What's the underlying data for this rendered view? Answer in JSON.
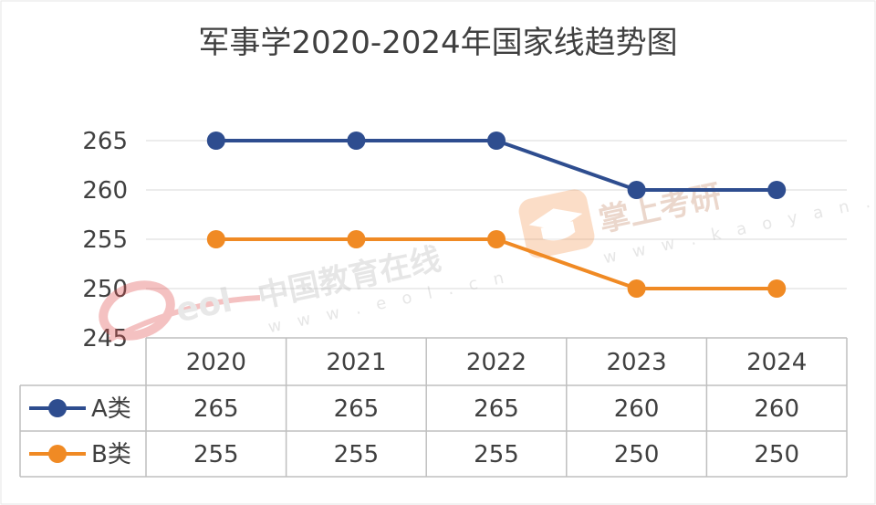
{
  "chart_data": {
    "type": "line",
    "title": "军事学2020-2024年国家线趋势图",
    "categories": [
      "2020",
      "2021",
      "2022",
      "2023",
      "2024"
    ],
    "series": [
      {
        "name": "A类",
        "values": [
          265,
          265,
          265,
          260,
          260
        ],
        "color": "#2E4D8F"
      },
      {
        "name": "B类",
        "values": [
          255,
          255,
          255,
          250,
          250
        ],
        "color": "#F08A24"
      }
    ],
    "yticks": [
      245,
      250,
      255,
      260,
      265
    ],
    "ylim": [
      245,
      265
    ],
    "grid": true,
    "data_table": true
  },
  "watermarks": {
    "eol": {
      "logo": "eol",
      "cn": "中国教育在线",
      "url": "w w w . e o l . c n",
      "icon": "eol-swoosh-icon"
    },
    "kaoyan": {
      "cn": "掌上考研",
      "url": "w w w . k a o y a n . c n",
      "icon": "graduation-cap-icon"
    }
  },
  "colors": {
    "grid": "#D9D9D9",
    "table_border": "#BFBFBF",
    "text": "#404040"
  }
}
